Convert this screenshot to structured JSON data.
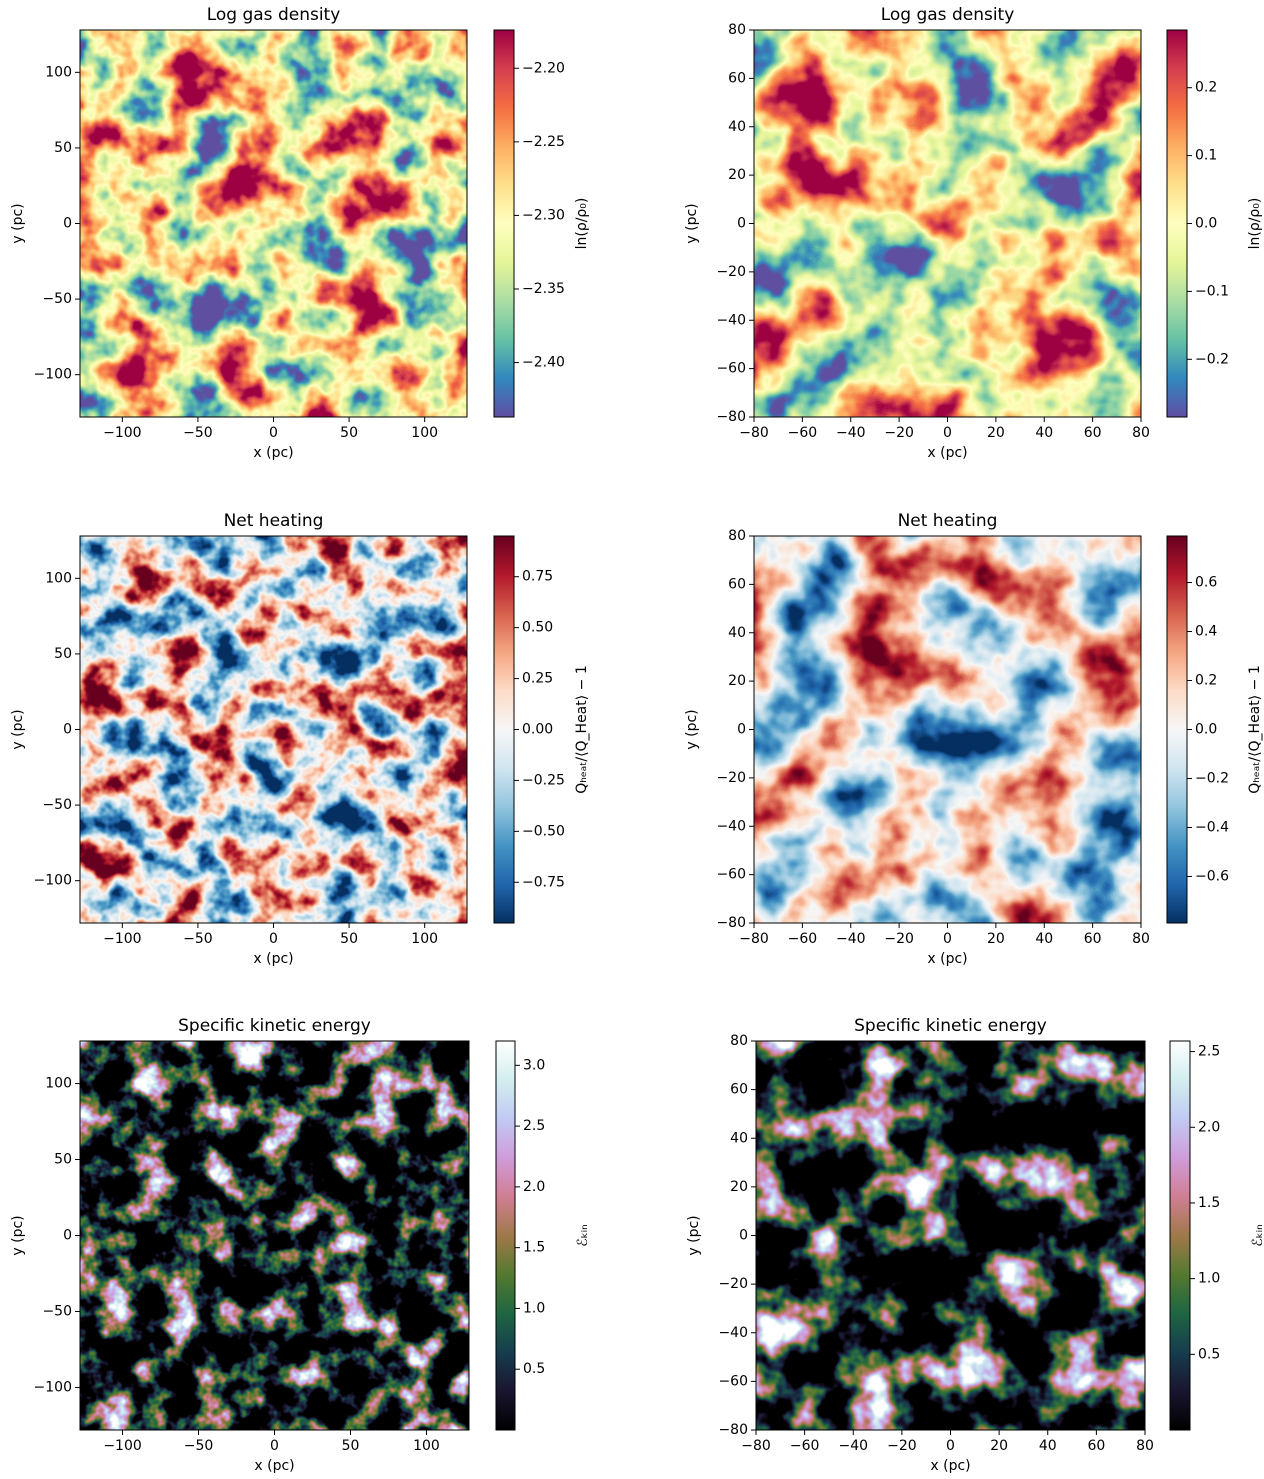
{
  "chart_data": [
    {
      "type": "heatmap",
      "title": "Log gas density",
      "xlabel": "x (pc)",
      "ylabel": "y (pc)",
      "xlim": [
        -128,
        128
      ],
      "ylim": [
        -128,
        128
      ],
      "xticks": [
        {
          "value": -100,
          "label": "−100"
        },
        {
          "value": -50,
          "label": "−50"
        },
        0,
        50,
        100
      ],
      "yticks": [
        {
          "value": -100,
          "label": "−100"
        },
        {
          "value": -50,
          "label": "−50"
        },
        0,
        50,
        100
      ],
      "colorbar_label": "ln(ρ/ρ₀)",
      "clim": [
        -2.437,
        -2.174
      ],
      "cticks": [
        {
          "value": -2.4,
          "label": "−2.40"
        },
        {
          "value": -2.35,
          "label": "−2.35"
        },
        {
          "value": -2.3,
          "label": "−2.30"
        },
        {
          "value": -2.25,
          "label": "−2.25"
        },
        {
          "value": -2.2,
          "label": "−2.20"
        }
      ],
      "colormap": [
        "#5e4fa2",
        "#3288bd",
        "#66c2a5",
        "#abdda4",
        "#e6f598",
        "#ffffbf",
        "#fee08b",
        "#fdae61",
        "#f46d43",
        "#d53e4f",
        "#9e0142"
      ]
    },
    {
      "type": "heatmap",
      "title": "Log gas density",
      "xlabel": "x (pc)",
      "ylabel": "y (pc)",
      "xlim": [
        -80,
        80
      ],
      "ylim": [
        -80,
        80
      ],
      "xticks": [
        {
          "value": -80,
          "label": "−80"
        },
        {
          "value": -60,
          "label": "−60"
        },
        {
          "value": -40,
          "label": "−40"
        },
        {
          "value": -20,
          "label": "−20"
        },
        0,
        20,
        40,
        60,
        80
      ],
      "yticks": [
        {
          "value": -80,
          "label": "−80"
        },
        {
          "value": -60,
          "label": "−60"
        },
        {
          "value": -40,
          "label": "−40"
        },
        {
          "value": -20,
          "label": "−20"
        },
        0,
        20,
        40,
        60,
        80
      ],
      "colorbar_label": "ln(ρ/ρ₀)",
      "clim": [
        -0.285,
        0.285
      ],
      "cticks": [
        {
          "value": -0.2,
          "label": "−0.2"
        },
        {
          "value": -0.1,
          "label": "−0.1"
        },
        {
          "value": 0,
          "label": "0.0"
        },
        0.1,
        0.2
      ],
      "colormap": [
        "#5e4fa2",
        "#3288bd",
        "#66c2a5",
        "#abdda4",
        "#e6f598",
        "#ffffbf",
        "#fee08b",
        "#fdae61",
        "#f46d43",
        "#d53e4f",
        "#9e0142"
      ]
    },
    {
      "type": "heatmap",
      "title": "Net heating",
      "xlabel": "x (pc)",
      "ylabel": "y (pc)",
      "xlim": [
        -128,
        128
      ],
      "ylim": [
        -128,
        128
      ],
      "xticks": [
        {
          "value": -100,
          "label": "−100"
        },
        {
          "value": -50,
          "label": "−50"
        },
        0,
        50,
        100
      ],
      "yticks": [
        {
          "value": -100,
          "label": "−100"
        },
        {
          "value": -50,
          "label": "−50"
        },
        0,
        50,
        100
      ],
      "colorbar_label": "Qₕₑₐₜ/⟨Q_Heat⟩ − 1",
      "clim": [
        -0.95,
        0.95
      ],
      "cticks": [
        {
          "value": -0.75,
          "label": "−0.75"
        },
        {
          "value": -0.5,
          "label": "−0.50"
        },
        {
          "value": -0.25,
          "label": "−0.25"
        },
        {
          "value": 0,
          "label": "0.00"
        },
        0.25,
        {
          "value": 0.5,
          "label": "0.50"
        },
        0.75
      ],
      "colormap": [
        "#053061",
        "#2166ac",
        "#4393c3",
        "#92c5de",
        "#d1e5f0",
        "#f7f7f7",
        "#fddbc7",
        "#f4a582",
        "#d6604d",
        "#b2182b",
        "#67001f"
      ]
    },
    {
      "type": "heatmap",
      "title": "Net heating",
      "xlabel": "x (pc)",
      "ylabel": "y (pc)",
      "xlim": [
        -80,
        80
      ],
      "ylim": [
        -80,
        80
      ],
      "xticks": [
        {
          "value": -80,
          "label": "−80"
        },
        {
          "value": -60,
          "label": "−60"
        },
        {
          "value": -40,
          "label": "−40"
        },
        {
          "value": -20,
          "label": "−20"
        },
        0,
        20,
        40,
        60,
        80
      ],
      "yticks": [
        {
          "value": -80,
          "label": "−80"
        },
        {
          "value": -60,
          "label": "−60"
        },
        {
          "value": -40,
          "label": "−40"
        },
        {
          "value": -20,
          "label": "−20"
        },
        0,
        20,
        40,
        60,
        80
      ],
      "colorbar_label": "Qₕₑₐₜ/⟨Q_Heat⟩ − 1",
      "clim": [
        -0.79,
        0.79
      ],
      "cticks": [
        {
          "value": -0.6,
          "label": "−0.6"
        },
        {
          "value": -0.4,
          "label": "−0.4"
        },
        {
          "value": -0.2,
          "label": "−0.2"
        },
        {
          "value": 0,
          "label": "0.0"
        },
        0.2,
        0.4,
        0.6
      ],
      "colormap": [
        "#053061",
        "#2166ac",
        "#4393c3",
        "#92c5de",
        "#d1e5f0",
        "#f7f7f7",
        "#fddbc7",
        "#f4a582",
        "#d6604d",
        "#b2182b",
        "#67001f"
      ]
    },
    {
      "type": "heatmap",
      "title": "Specific kinetic energy",
      "xlabel": "x (pc)",
      "ylabel": "y (pc)",
      "xlim": [
        -128,
        128
      ],
      "ylim": [
        -128,
        128
      ],
      "xticks": [
        {
          "value": -100,
          "label": "−100"
        },
        {
          "value": -50,
          "label": "−50"
        },
        0,
        50,
        100
      ],
      "yticks": [
        {
          "value": -100,
          "label": "−100"
        },
        {
          "value": -50,
          "label": "−50"
        },
        0,
        50,
        100
      ],
      "colorbar_label": "ℰₖᵢₙ",
      "clim": [
        0,
        3.2
      ],
      "cticks": [
        0.5,
        {
          "value": 1,
          "label": "1.0"
        },
        1.5,
        {
          "value": 2,
          "label": "2.0"
        },
        2.5,
        {
          "value": 3,
          "label": "3.0"
        }
      ],
      "colormap": [
        "#000000",
        "#1a1530",
        "#163d4e",
        "#1f6642",
        "#54792f",
        "#a07949",
        "#d07e93",
        "#cf9cda",
        "#c1caf3",
        "#d2eeef",
        "#ffffff"
      ]
    },
    {
      "type": "heatmap",
      "title": "Specific kinetic energy",
      "xlabel": "x (pc)",
      "ylabel": "y (pc)",
      "xlim": [
        -80,
        80
      ],
      "ylim": [
        -80,
        80
      ],
      "xticks": [
        {
          "value": -80,
          "label": "−80"
        },
        {
          "value": -60,
          "label": "−60"
        },
        {
          "value": -40,
          "label": "−40"
        },
        {
          "value": -20,
          "label": "−20"
        },
        0,
        20,
        40,
        60,
        80
      ],
      "yticks": [
        {
          "value": -80,
          "label": "−80"
        },
        {
          "value": -60,
          "label": "−60"
        },
        {
          "value": -40,
          "label": "−40"
        },
        {
          "value": -20,
          "label": "−20"
        },
        0,
        20,
        40,
        60,
        80
      ],
      "colorbar_label": "ℰₖᵢₙ",
      "clim": [
        0,
        2.57
      ],
      "cticks": [
        0.5,
        {
          "value": 1,
          "label": "1.0"
        },
        1.5,
        {
          "value": 2,
          "label": "2.0"
        },
        2.5
      ],
      "colormap": [
        "#000000",
        "#1a1530",
        "#163d4e",
        "#1f6642",
        "#54792f",
        "#a07949",
        "#d07e93",
        "#cf9cda",
        "#c1caf3",
        "#d2eeef",
        "#ffffff"
      ]
    }
  ]
}
